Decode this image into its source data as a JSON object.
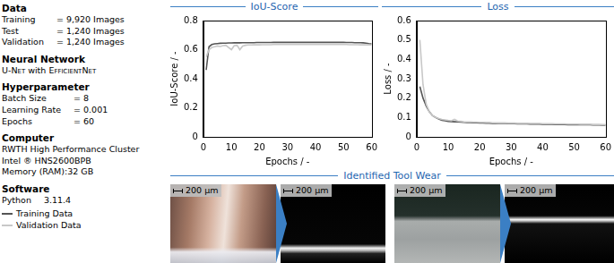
{
  "panel": {
    "sections": [
      {
        "title": "Data",
        "rows": [
          [
            "Training",
            "= 9,920 Images"
          ],
          [
            "Test",
            "= 1,240 Images"
          ],
          [
            "Validation",
            "= 1,240 Images"
          ]
        ]
      },
      {
        "title": "Neural Network",
        "rows": [
          [
            "U-Net",
            "with",
            "EfficientNet"
          ]
        ]
      },
      {
        "title": "Hyperparameter",
        "rows": [
          [
            "Batch Size",
            "= 8"
          ],
          [
            "Learning Rate",
            "= 0.001"
          ],
          [
            "Epochs",
            "= 60"
          ]
        ]
      },
      {
        "title": "Computer",
        "rows": [
          [
            "RWTH High Performance Cluster"
          ],
          [
            "Intel ® HNS2600BPB"
          ],
          [
            "Memory (RAM):32 GB"
          ]
        ]
      },
      {
        "title": "Software",
        "rows": [
          [
            "Python",
            "3.11.4"
          ]
        ]
      }
    ]
  },
  "chart_data": [
    {
      "type": "line",
      "title": "IoU-Score",
      "x_label": "Epochs / -",
      "y_label": "IoU-Score / -",
      "x": [
        1,
        2,
        3,
        4,
        5,
        6,
        7,
        8,
        9,
        10,
        11,
        12,
        13,
        14,
        15,
        16,
        17,
        18,
        19,
        20,
        21,
        22,
        23,
        24,
        25,
        26,
        27,
        28,
        29,
        30,
        31,
        32,
        33,
        34,
        35,
        36,
        37,
        38,
        39,
        40,
        41,
        42,
        43,
        44,
        45,
        46,
        47,
        48,
        49,
        50,
        51,
        52,
        53,
        54,
        55,
        56,
        57,
        58,
        59,
        60
      ],
      "series": [
        {
          "name": "Training Data",
          "color": "#555555",
          "values": [
            0.46,
            0.62,
            0.635,
            0.64,
            0.642,
            0.644,
            0.645,
            0.645,
            0.646,
            0.646,
            0.647,
            0.647,
            0.647,
            0.648,
            0.648,
            0.648,
            0.648,
            0.648,
            0.649,
            0.649,
            0.649,
            0.649,
            0.649,
            0.649,
            0.65,
            0.65,
            0.65,
            0.65,
            0.65,
            0.65,
            0.65,
            0.65,
            0.65,
            0.65,
            0.65,
            0.65,
            0.65,
            0.65,
            0.65,
            0.65,
            0.65,
            0.65,
            0.65,
            0.65,
            0.65,
            0.65,
            0.65,
            0.65,
            0.65,
            0.65,
            0.649,
            0.649,
            0.649,
            0.648,
            0.648,
            0.648,
            0.647,
            0.645,
            0.642,
            0.64
          ]
        },
        {
          "name": "Validation Data",
          "color": "#c8c8c8",
          "values": [
            0.55,
            0.6,
            0.615,
            0.62,
            0.625,
            0.622,
            0.628,
            0.63,
            0.615,
            0.6,
            0.628,
            0.63,
            0.6,
            0.625,
            0.63,
            0.632,
            0.632,
            0.633,
            0.633,
            0.633,
            0.634,
            0.634,
            0.634,
            0.634,
            0.635,
            0.635,
            0.635,
            0.635,
            0.635,
            0.635,
            0.635,
            0.635,
            0.635,
            0.635,
            0.635,
            0.635,
            0.635,
            0.635,
            0.635,
            0.635,
            0.635,
            0.635,
            0.635,
            0.635,
            0.635,
            0.635,
            0.635,
            0.635,
            0.635,
            0.635,
            0.635,
            0.634,
            0.634,
            0.634,
            0.634,
            0.633,
            0.633,
            0.633,
            0.632,
            0.632
          ]
        }
      ],
      "xlim": [
        0,
        60
      ],
      "xticks": [
        0,
        10,
        20,
        30,
        40,
        50,
        60
      ],
      "ylim": [
        0,
        0.8
      ],
      "yticks": [
        0,
        0.2,
        0.4,
        0.6,
        0.8
      ],
      "grid": false
    },
    {
      "type": "line",
      "title": "Loss",
      "x_label": "Epochs / -",
      "y_label": "Loss / -",
      "x": [
        1,
        2,
        3,
        4,
        5,
        6,
        7,
        8,
        9,
        10,
        11,
        12,
        13,
        14,
        15,
        16,
        17,
        18,
        19,
        20,
        21,
        22,
        23,
        24,
        25,
        26,
        27,
        28,
        29,
        30,
        31,
        32,
        33,
        34,
        35,
        36,
        37,
        38,
        39,
        40,
        41,
        42,
        43,
        44,
        45,
        46,
        47,
        48,
        49,
        50,
        51,
        52,
        53,
        54,
        55,
        56,
        57,
        58,
        59,
        60
      ],
      "series": [
        {
          "name": "Training Data",
          "color": "#555555",
          "values": [
            0.26,
            0.2,
            0.16,
            0.13,
            0.11,
            0.1,
            0.092,
            0.086,
            0.083,
            0.08,
            0.079,
            0.078,
            0.077,
            0.076,
            0.075,
            0.074,
            0.074,
            0.073,
            0.073,
            0.072,
            0.072,
            0.071,
            0.071,
            0.07,
            0.07,
            0.069,
            0.069,
            0.069,
            0.068,
            0.068,
            0.068,
            0.067,
            0.067,
            0.067,
            0.067,
            0.066,
            0.066,
            0.066,
            0.066,
            0.065,
            0.065,
            0.065,
            0.065,
            0.064,
            0.064,
            0.064,
            0.064,
            0.063,
            0.063,
            0.063,
            0.063,
            0.062,
            0.062,
            0.062,
            0.062,
            0.061,
            0.061,
            0.061,
            0.06,
            0.06
          ]
        },
        {
          "name": "Validation Data",
          "color": "#c8c8c8",
          "values": [
            0.5,
            0.27,
            0.17,
            0.13,
            0.11,
            0.1,
            0.095,
            0.09,
            0.088,
            0.085,
            0.083,
            0.09,
            0.082,
            0.08,
            0.078,
            0.077,
            0.077,
            0.076,
            0.076,
            0.075,
            0.075,
            0.074,
            0.074,
            0.073,
            0.073,
            0.072,
            0.072,
            0.072,
            0.071,
            0.071,
            0.071,
            0.07,
            0.07,
            0.07,
            0.07,
            0.069,
            0.069,
            0.069,
            0.069,
            0.068,
            0.068,
            0.068,
            0.068,
            0.067,
            0.067,
            0.067,
            0.067,
            0.066,
            0.066,
            0.066,
            0.066,
            0.065,
            0.065,
            0.065,
            0.065,
            0.064,
            0.064,
            0.064,
            0.063,
            0.063
          ]
        }
      ],
      "xlim": [
        0,
        60
      ],
      "xticks": [
        0,
        10,
        20,
        30,
        40,
        50,
        60
      ],
      "ylim": [
        0,
        0.6
      ],
      "yticks": [
        0,
        0.1,
        0.2,
        0.3,
        0.4,
        0.5,
        0.6
      ],
      "grid": false
    }
  ],
  "figure": {
    "title": "Identified Tool Wear",
    "scale_bars": [
      "200 µm",
      "200 µm",
      "200 µm",
      "200 µm"
    ]
  }
}
